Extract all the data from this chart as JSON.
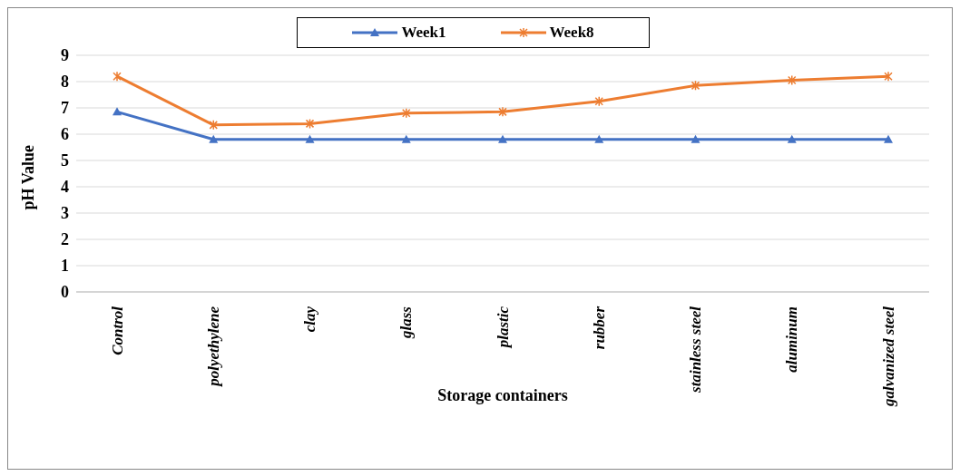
{
  "chart_data": {
    "type": "line",
    "xlabel": "Storage containers",
    "ylabel": "pH Value",
    "categories": [
      "Control",
      "polyethylene",
      "clay",
      "glass",
      "plastic",
      "rubber",
      "stainless steel",
      "aluminum",
      "galvanized steel"
    ],
    "series": [
      {
        "name": "Week1",
        "color": "#4472c4",
        "marker": "triangle",
        "values": [
          6.85,
          5.8,
          5.8,
          5.8,
          5.8,
          5.8,
          5.8,
          5.8,
          5.8
        ]
      },
      {
        "name": "Week8",
        "color": "#ed7d31",
        "marker": "cross",
        "values": [
          8.2,
          6.35,
          6.4,
          6.8,
          6.85,
          7.25,
          7.85,
          8.05,
          8.2
        ]
      }
    ],
    "ylim": [
      0,
      9
    ],
    "yticks": [
      0,
      1,
      2,
      3,
      4,
      5,
      6,
      7,
      8,
      9
    ],
    "grid": "y",
    "legend": "top"
  }
}
